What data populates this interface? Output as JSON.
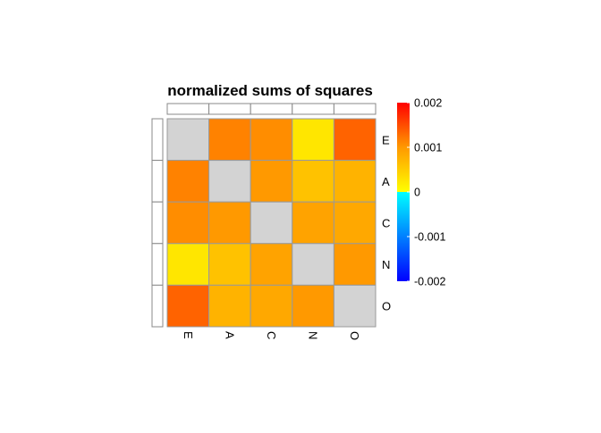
{
  "chart_data": {
    "type": "heatmap",
    "title": "normalized sums of squares",
    "row_labels": [
      "E",
      "A",
      "C",
      "N",
      "O"
    ],
    "col_labels": [
      "E",
      "A",
      "C",
      "N",
      "O"
    ],
    "values": [
      [
        null,
        0.00115,
        0.00108,
        0.00025,
        0.00135
      ],
      [
        0.00115,
        null,
        0.001,
        0.0006,
        0.00075
      ],
      [
        0.00108,
        0.001,
        null,
        0.0009,
        0.00085
      ],
      [
        0.00025,
        0.0006,
        0.0009,
        null,
        0.001
      ],
      [
        0.00135,
        0.00075,
        0.00085,
        0.001,
        null
      ]
    ],
    "missing_color": "#d3d3d3",
    "cell_border_color": "#999999",
    "colorbar": {
      "range": [
        -0.002,
        0.002
      ],
      "tick_values": [
        0.002,
        0.001,
        0,
        -0.001,
        -0.002
      ],
      "tick_labels": [
        "0.002",
        "0.001",
        "0",
        "-0.001",
        "-0.002"
      ],
      "colors": [
        "#0000ff",
        "#00ffff",
        "#ffff00",
        "#ff0000"
      ]
    }
  }
}
